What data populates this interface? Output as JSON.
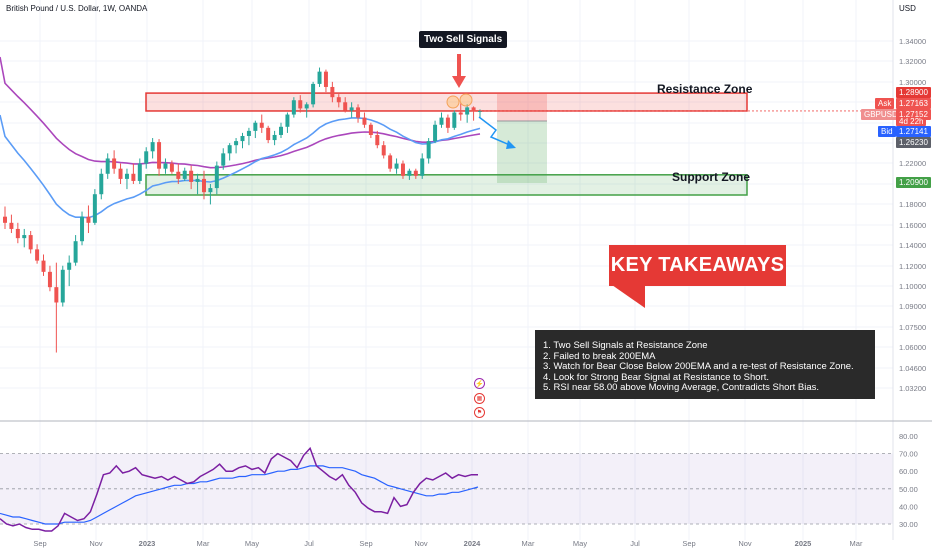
{
  "header": {
    "symbol": "British Pound / U.S. Dollar, 1W, OANDA",
    "currency": "USD"
  },
  "annotations": {
    "callout": "Two Sell Signals",
    "resistance_label": "Resistance Zone",
    "support_label": "Support Zone",
    "key_title": "KEY TAKEAWAYS",
    "takeaways": [
      "1. Two Sell Signals at Resistance Zone",
      "2. Failed to break 200EMA",
      "3. Watch for Bear Close Below 200EMA and a re-test of Resistance Zone.",
      "4. Look for Strong Bear Signal at Resistance to Short.",
      "5. RSI near 58.00 above Moving Average, Contradicts Short Bias."
    ]
  },
  "price_tags": {
    "resistance": "1.28900",
    "ask_label": "Ask",
    "ask": "1.27163",
    "symbol_label": "GBPUSD",
    "last": "1.27152",
    "countdown": "4d 22h",
    "bid_label": "Bid",
    "bid": "1.27141",
    "ema_value": "1.26230",
    "support": "1.20900"
  },
  "colors": {
    "bull": "#26a69a",
    "bear": "#ef5350",
    "ema200": "#ab47bc",
    "ma50": "#5b9cf6",
    "rsi": "#7b1fa2",
    "rsi_ma": "#2962ff",
    "resistance": "#e53935",
    "support": "#43a047"
  },
  "icons": [
    "lightning-icon",
    "calendar-event-icon",
    "flag-icon"
  ],
  "chart_data": [
    {
      "type": "candlestick",
      "title": "British Pound / U.S. Dollar, 1W, OANDA",
      "y_unit": "USD",
      "y_ticks": [
        "1.34000",
        "1.32000",
        "1.30000",
        "1.28000",
        "1.26000",
        "1.24000",
        "1.22000",
        "1.20000",
        "1.18000",
        "1.16000",
        "1.14000",
        "1.12000",
        "1.10000",
        "1.09000",
        "1.07500",
        "1.06000",
        "1.04600",
        "1.03200"
      ],
      "x_ticks": [
        "Sep",
        "Nov",
        "2023",
        "Mar",
        "May",
        "Jul",
        "Sep",
        "Nov",
        "2024",
        "Mar",
        "May",
        "Jul",
        "Sep",
        "Nov",
        "2025",
        "Mar"
      ],
      "candles": [
        [
          1.168,
          1.178,
          1.156,
          1.162
        ],
        [
          1.162,
          1.17,
          1.152,
          1.156
        ],
        [
          1.156,
          1.162,
          1.142,
          1.147
        ],
        [
          1.147,
          1.156,
          1.138,
          1.15
        ],
        [
          1.15,
          1.154,
          1.132,
          1.136
        ],
        [
          1.136,
          1.141,
          1.122,
          1.125
        ],
        [
          1.125,
          1.131,
          1.11,
          1.114
        ],
        [
          1.114,
          1.12,
          1.095,
          1.099
        ],
        [
          1.099,
          1.123,
          1.035,
          1.084
        ],
        [
          1.084,
          1.12,
          1.08,
          1.116
        ],
        [
          1.116,
          1.13,
          1.1,
          1.123
        ],
        [
          1.123,
          1.15,
          1.12,
          1.144
        ],
        [
          1.144,
          1.173,
          1.14,
          1.168
        ],
        [
          1.168,
          1.179,
          1.152,
          1.162
        ],
        [
          1.162,
          1.195,
          1.16,
          1.19
        ],
        [
          1.19,
          1.215,
          1.185,
          1.21
        ],
        [
          1.21,
          1.23,
          1.205,
          1.225
        ],
        [
          1.225,
          1.233,
          1.21,
          1.215
        ],
        [
          1.215,
          1.22,
          1.2,
          1.205
        ],
        [
          1.205,
          1.215,
          1.195,
          1.21
        ],
        [
          1.21,
          1.22,
          1.2,
          1.203
        ],
        [
          1.203,
          1.225,
          1.2,
          1.22
        ],
        [
          1.22,
          1.236,
          1.215,
          1.232
        ],
        [
          1.232,
          1.245,
          1.225,
          1.241
        ],
        [
          1.241,
          1.244,
          1.208,
          1.215
        ],
        [
          1.215,
          1.225,
          1.21,
          1.22
        ],
        [
          1.22,
          1.223,
          1.21,
          1.212
        ],
        [
          1.212,
          1.22,
          1.2,
          1.205
        ],
        [
          1.205,
          1.216,
          1.203,
          1.213
        ],
        [
          1.213,
          1.218,
          1.195,
          1.202
        ],
        [
          1.202,
          1.21,
          1.19,
          1.205
        ],
        [
          1.205,
          1.213,
          1.185,
          1.192
        ],
        [
          1.192,
          1.2,
          1.18,
          1.196
        ],
        [
          1.196,
          1.222,
          1.19,
          1.218
        ],
        [
          1.218,
          1.235,
          1.214,
          1.23
        ],
        [
          1.23,
          1.24,
          1.223,
          1.238
        ],
        [
          1.238,
          1.245,
          1.23,
          1.242
        ],
        [
          1.242,
          1.25,
          1.235,
          1.247
        ],
        [
          1.247,
          1.255,
          1.238,
          1.252
        ],
        [
          1.252,
          1.262,
          1.245,
          1.26
        ],
        [
          1.26,
          1.268,
          1.25,
          1.255
        ],
        [
          1.255,
          1.257,
          1.24,
          1.243
        ],
        [
          1.243,
          1.252,
          1.238,
          1.248
        ],
        [
          1.248,
          1.26,
          1.245,
          1.256
        ],
        [
          1.256,
          1.27,
          1.25,
          1.268
        ],
        [
          1.268,
          1.285,
          1.265,
          1.282
        ],
        [
          1.282,
          1.287,
          1.27,
          1.274
        ],
        [
          1.274,
          1.28,
          1.265,
          1.278
        ],
        [
          1.278,
          1.3,
          1.275,
          1.298
        ],
        [
          1.298,
          1.314,
          1.295,
          1.31
        ],
        [
          1.31,
          1.312,
          1.29,
          1.295
        ],
        [
          1.295,
          1.3,
          1.28,
          1.285
        ],
        [
          1.285,
          1.288,
          1.275,
          1.28
        ],
        [
          1.28,
          1.285,
          1.27,
          1.272
        ],
        [
          1.272,
          1.28,
          1.265,
          1.275
        ],
        [
          1.275,
          1.278,
          1.26,
          1.265
        ],
        [
          1.265,
          1.27,
          1.255,
          1.258
        ],
        [
          1.258,
          1.26,
          1.245,
          1.248
        ],
        [
          1.248,
          1.252,
          1.235,
          1.238
        ],
        [
          1.238,
          1.242,
          1.225,
          1.228
        ],
        [
          1.228,
          1.23,
          1.212,
          1.215
        ],
        [
          1.215,
          1.225,
          1.21,
          1.22
        ],
        [
          1.22,
          1.223,
          1.205,
          1.208
        ],
        [
          1.208,
          1.215,
          1.204,
          1.213
        ],
        [
          1.213,
          1.215,
          1.205,
          1.208
        ],
        [
          1.208,
          1.23,
          1.205,
          1.225
        ],
        [
          1.225,
          1.245,
          1.22,
          1.242
        ],
        [
          1.242,
          1.262,
          1.24,
          1.258
        ],
        [
          1.258,
          1.27,
          1.255,
          1.265
        ],
        [
          1.265,
          1.268,
          1.25,
          1.255
        ],
        [
          1.255,
          1.272,
          1.253,
          1.27
        ],
        [
          1.27,
          1.279,
          1.262,
          1.268
        ],
        [
          1.268,
          1.278,
          1.26,
          1.275
        ],
        [
          1.275,
          1.276,
          1.262,
          1.271
        ],
        [
          1.271,
          1.273,
          1.265,
          1.2715
        ]
      ],
      "candles_note": "each candle is [open, high, low, close], weekly, from late Jul 2022 to early Jan 2024",
      "resistance_zone": [
        1.2715,
        1.289
      ],
      "support_zone": [
        1.2,
        1.209
      ]
    },
    {
      "type": "line",
      "y_ticks": [
        "80.00",
        "70.00",
        "60.00",
        "50.00",
        "40.00",
        "30.00"
      ],
      "ylim": [
        30,
        80
      ],
      "band": [
        30,
        70
      ],
      "series": [
        {
          "values": [
            33,
            30,
            29,
            30,
            28,
            27,
            27,
            26,
            26,
            29,
            36,
            34,
            32,
            33,
            37,
            47,
            58,
            59,
            63,
            59,
            60,
            62,
            58,
            57,
            56,
            57,
            55,
            57,
            55,
            53,
            54,
            57,
            59,
            61,
            64,
            60,
            60,
            62,
            63,
            61,
            62,
            59,
            67,
            70,
            68,
            66,
            62,
            69,
            73,
            63,
            60,
            57,
            55,
            58,
            52,
            48,
            42,
            39,
            37,
            37,
            36,
            45,
            40,
            41,
            48,
            53,
            56,
            55,
            57,
            59,
            56,
            58,
            57,
            58,
            58
          ]
        },
        {
          "values": [
            36,
            35,
            34,
            34,
            33,
            32,
            31,
            30,
            30,
            30,
            31,
            31,
            31,
            31,
            32,
            34,
            36,
            38,
            40,
            42,
            44,
            46,
            47,
            48,
            49,
            50,
            51,
            52,
            52,
            53,
            53,
            54,
            54,
            55,
            56,
            56,
            56,
            57,
            57,
            58,
            58,
            58,
            59,
            60,
            60,
            61,
            61,
            62,
            63,
            63,
            63,
            62,
            62,
            62,
            61,
            60,
            58,
            57,
            56,
            54,
            52,
            51,
            50,
            49,
            48,
            47,
            46,
            46,
            47,
            47,
            48,
            48,
            49,
            50,
            51
          ]
        }
      ]
    }
  ]
}
